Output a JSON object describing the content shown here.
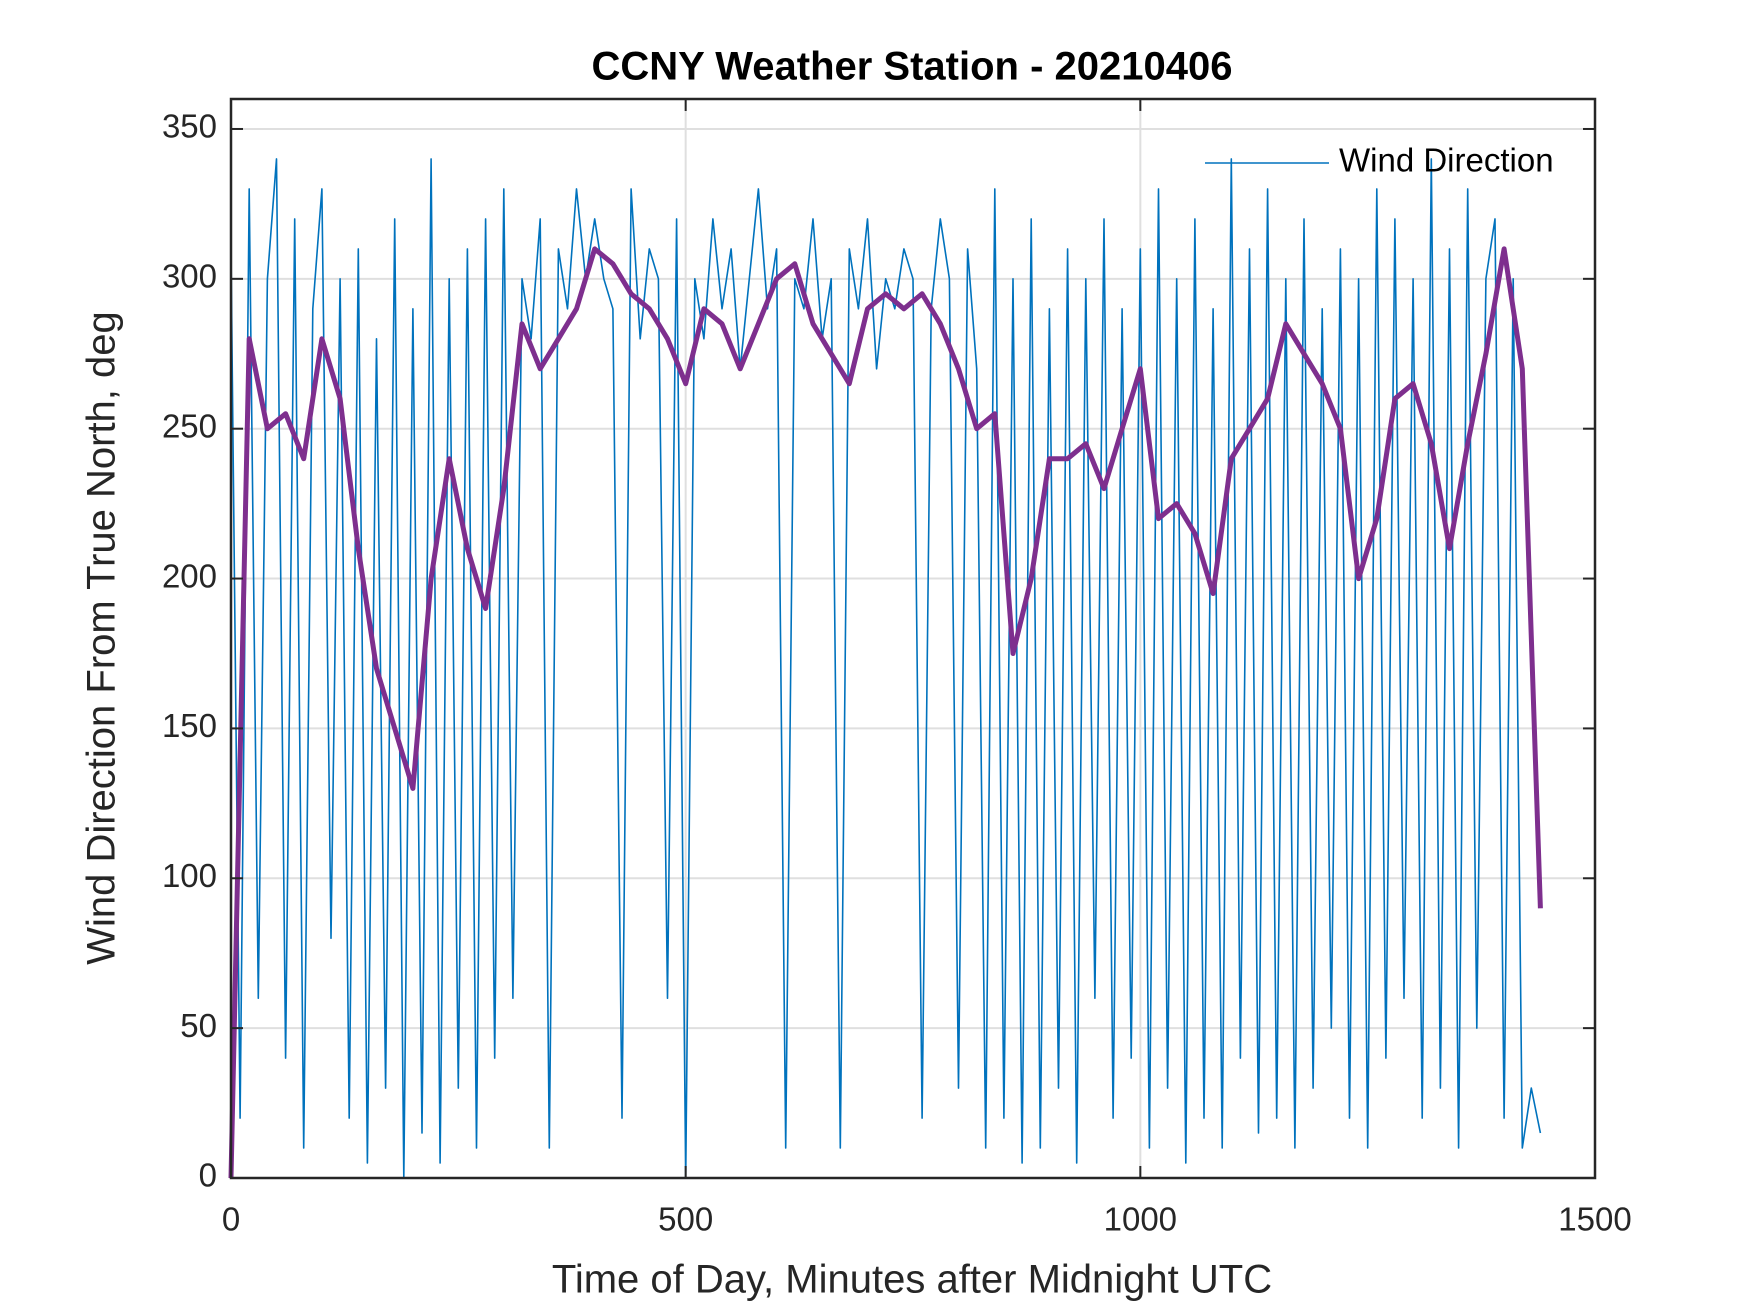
{
  "chart_data": {
    "type": "line",
    "title": "CCNY Weather Station - 20210406",
    "xlabel": "Time of Day, Minutes after Midnight UTC",
    "ylabel": "Wind Direction From True North, deg",
    "xlim": [
      0,
      1500
    ],
    "xticks": [
      0,
      500,
      1000,
      1500
    ],
    "ylim": [
      0,
      360
    ],
    "yticks": [
      0,
      50,
      100,
      150,
      200,
      250,
      300,
      350
    ],
    "grid": true,
    "legend": "northeast",
    "series": [
      {
        "name": "Wind Direction",
        "color": "#0072bd",
        "x": [
          0,
          10,
          20,
          30,
          40,
          50,
          60,
          70,
          80,
          90,
          100,
          110,
          120,
          130,
          140,
          150,
          160,
          170,
          180,
          190,
          200,
          210,
          220,
          230,
          240,
          250,
          260,
          270,
          280,
          290,
          300,
          310,
          320,
          330,
          340,
          350,
          360,
          370,
          380,
          390,
          400,
          410,
          420,
          430,
          440,
          450,
          460,
          470,
          480,
          490,
          500,
          510,
          520,
          530,
          540,
          550,
          560,
          570,
          580,
          590,
          600,
          610,
          620,
          630,
          640,
          650,
          660,
          670,
          680,
          690,
          700,
          710,
          720,
          730,
          740,
          750,
          760,
          770,
          780,
          790,
          800,
          810,
          820,
          830,
          840,
          850,
          860,
          870,
          880,
          890,
          900,
          910,
          920,
          930,
          940,
          950,
          960,
          970,
          980,
          990,
          1000,
          1010,
          1020,
          1030,
          1040,
          1050,
          1060,
          1070,
          1080,
          1090,
          1100,
          1110,
          1120,
          1130,
          1140,
          1150,
          1160,
          1170,
          1180,
          1190,
          1200,
          1210,
          1220,
          1230,
          1240,
          1250,
          1260,
          1270,
          1280,
          1290,
          1300,
          1310,
          1320,
          1330,
          1340,
          1350,
          1360,
          1370,
          1380,
          1390,
          1400,
          1410,
          1420,
          1430,
          1440
        ],
        "values": [
          310,
          20,
          330,
          60,
          300,
          340,
          40,
          320,
          10,
          290,
          330,
          80,
          300,
          20,
          310,
          5,
          280,
          30,
          320,
          0,
          290,
          15,
          340,
          5,
          300,
          30,
          310,
          10,
          320,
          40,
          330,
          60,
          300,
          280,
          320,
          10,
          310,
          290,
          330,
          300,
          320,
          300,
          290,
          20,
          330,
          280,
          310,
          300,
          60,
          320,
          0,
          300,
          280,
          320,
          290,
          310,
          270,
          300,
          330,
          290,
          310,
          10,
          300,
          290,
          320,
          280,
          300,
          10,
          310,
          290,
          320,
          270,
          300,
          290,
          310,
          300,
          20,
          290,
          320,
          300,
          30,
          310,
          270,
          10,
          330,
          20,
          300,
          5,
          320,
          10,
          290,
          30,
          310,
          5,
          300,
          60,
          320,
          20,
          290,
          40,
          310,
          10,
          330,
          30,
          300,
          5,
          320,
          20,
          290,
          10,
          340,
          40,
          310,
          15,
          330,
          20,
          300,
          10,
          320,
          30,
          290,
          50,
          310,
          20,
          300,
          10,
          330,
          40,
          320,
          60,
          300,
          20,
          340,
          30,
          310,
          10,
          330,
          50,
          300,
          320,
          20,
          300,
          10,
          30,
          15
        ]
      },
      {
        "color": "#7e2f8e",
        "x": [
          0,
          20,
          40,
          60,
          80,
          100,
          120,
          140,
          160,
          180,
          200,
          220,
          240,
          260,
          280,
          300,
          320,
          340,
          360,
          380,
          400,
          420,
          440,
          460,
          480,
          500,
          520,
          540,
          560,
          580,
          600,
          620,
          640,
          660,
          680,
          700,
          720,
          740,
          760,
          780,
          800,
          820,
          840,
          860,
          880,
          900,
          920,
          940,
          960,
          980,
          1000,
          1020,
          1040,
          1060,
          1080,
          1100,
          1120,
          1140,
          1160,
          1180,
          1200,
          1220,
          1240,
          1260,
          1280,
          1300,
          1320,
          1340,
          1360,
          1380,
          1400,
          1420,
          1440
        ],
        "values": [
          0,
          280,
          250,
          255,
          240,
          280,
          260,
          210,
          170,
          150,
          130,
          200,
          240,
          210,
          190,
          230,
          285,
          270,
          280,
          290,
          310,
          305,
          295,
          290,
          280,
          265,
          290,
          285,
          270,
          285,
          300,
          305,
          285,
          275,
          265,
          290,
          295,
          290,
          295,
          285,
          270,
          250,
          255,
          175,
          200,
          240,
          240,
          245,
          230,
          250,
          270,
          220,
          225,
          215,
          195,
          240,
          250,
          260,
          285,
          275,
          265,
          250,
          200,
          220,
          260,
          265,
          245,
          210,
          245,
          275,
          310,
          270,
          90
        ]
      }
    ]
  }
}
